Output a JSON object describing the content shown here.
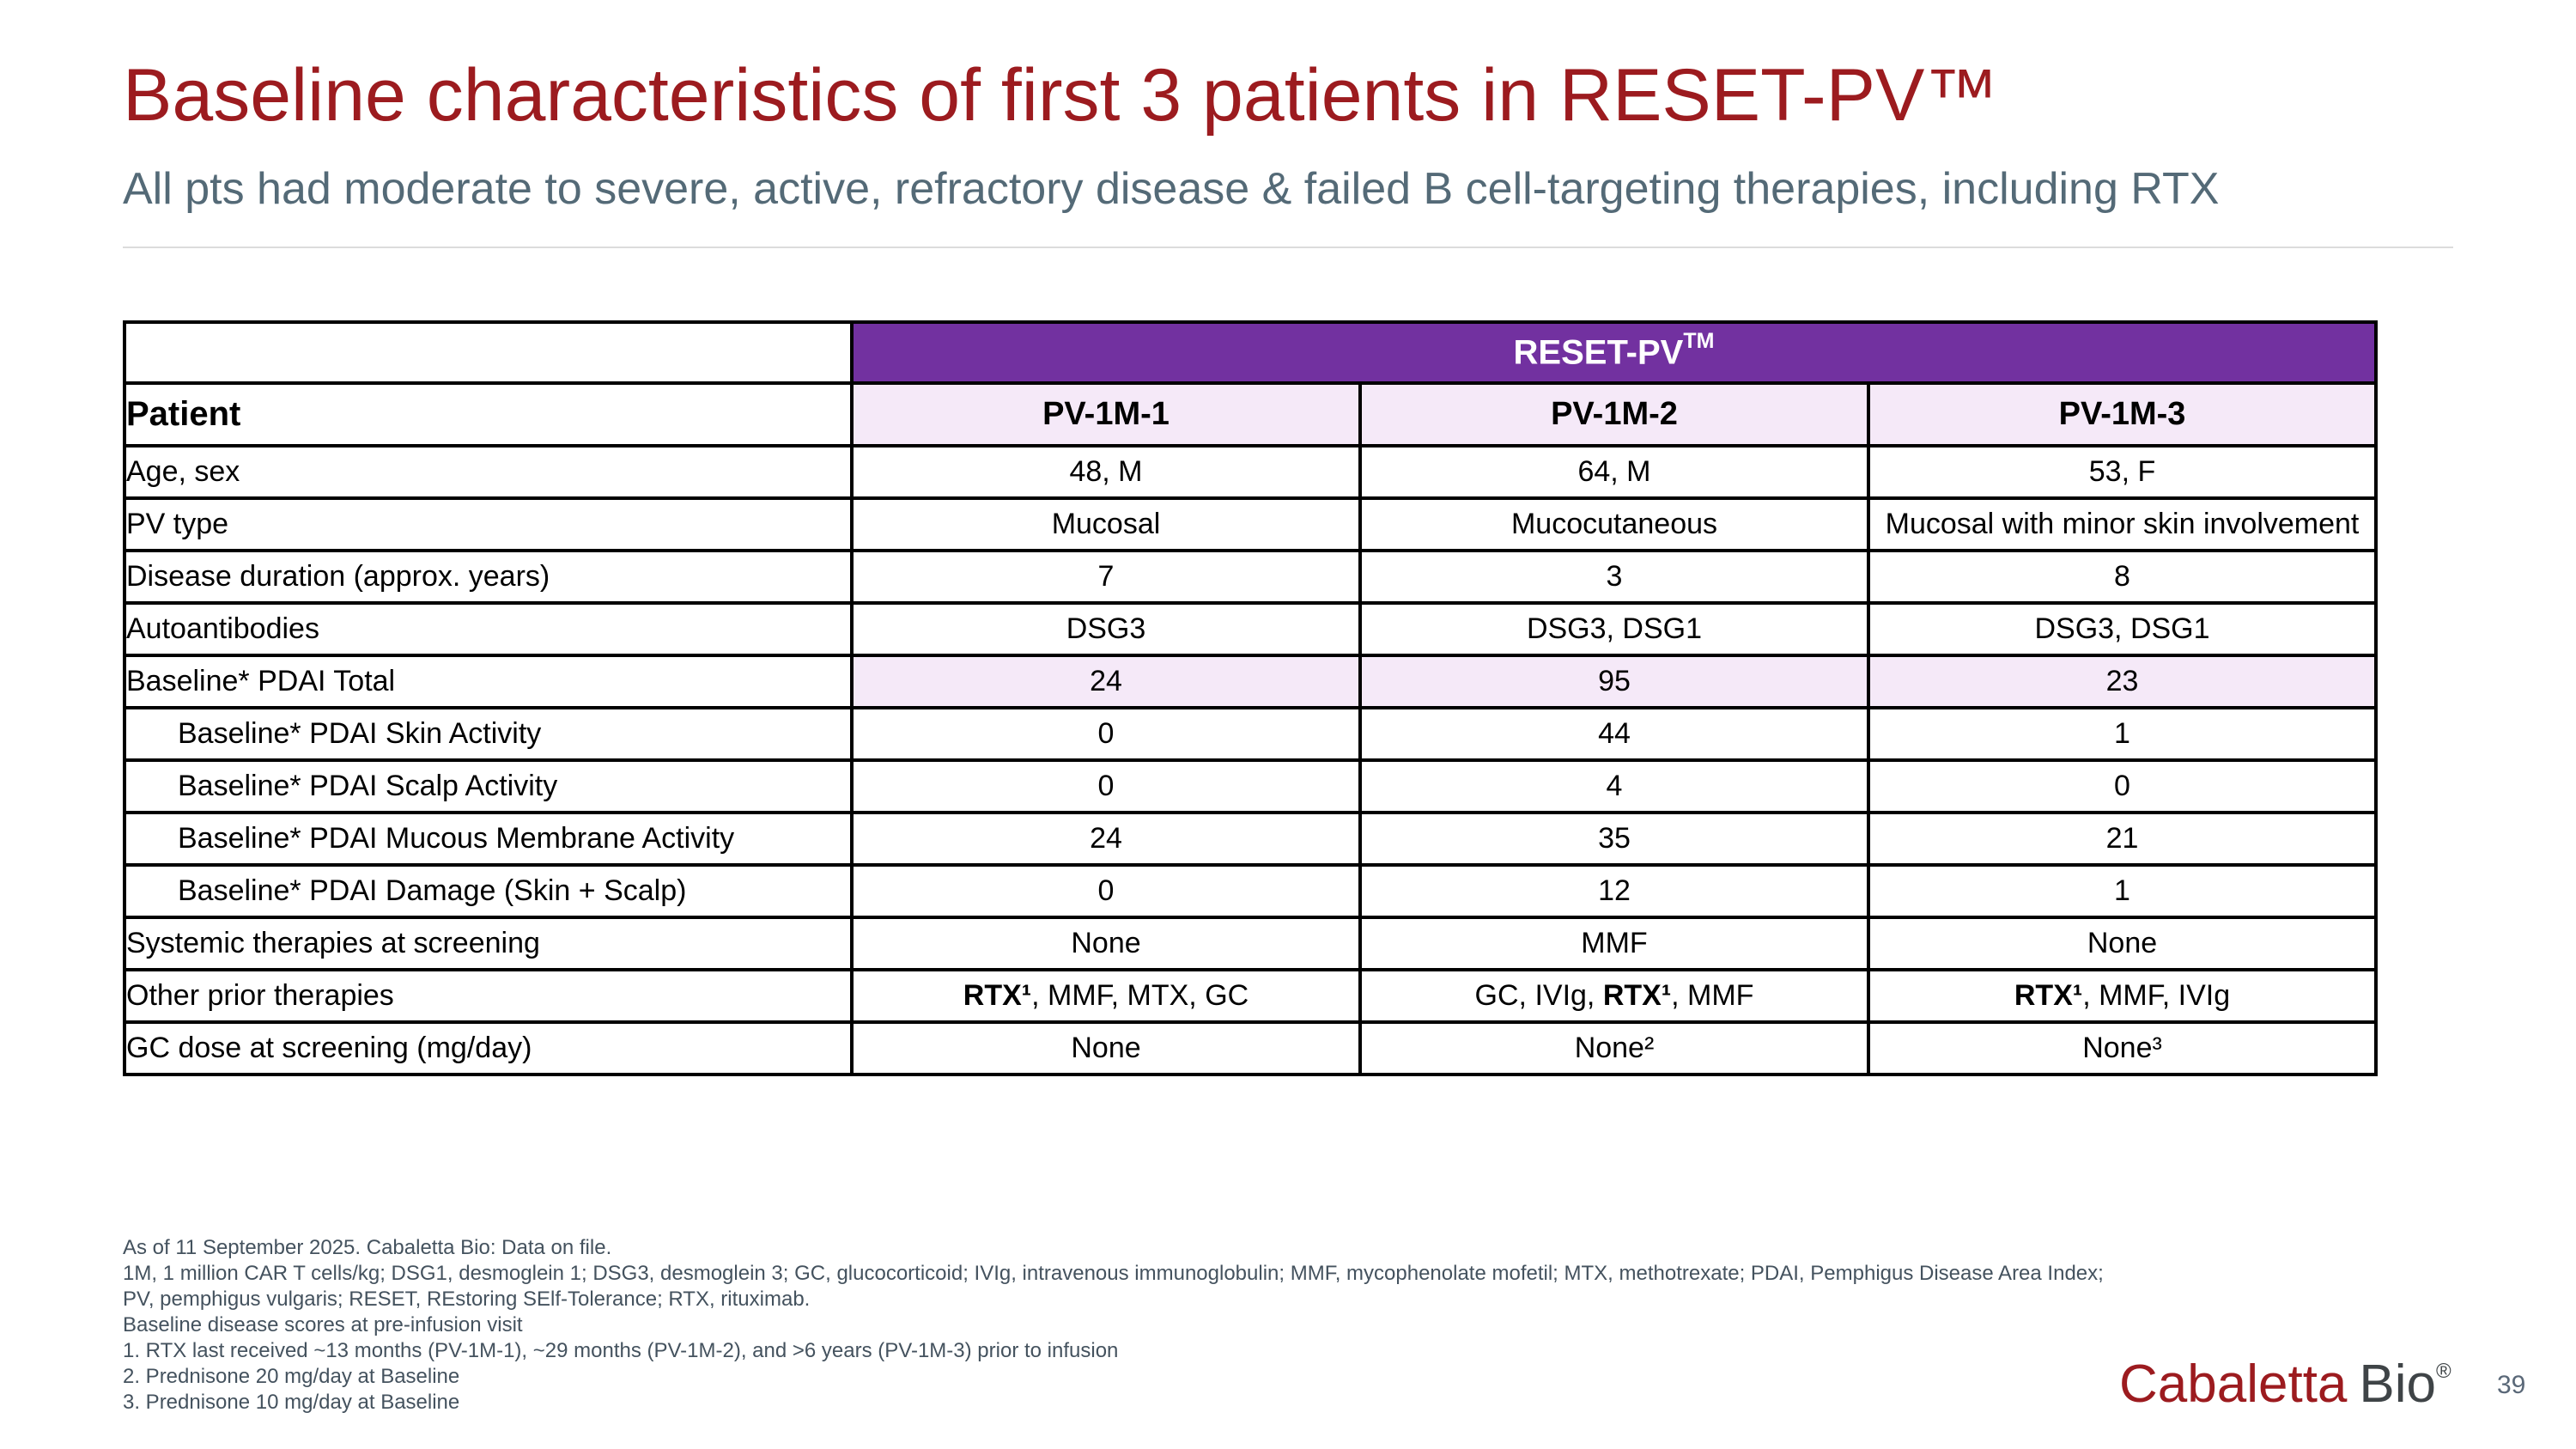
{
  "colors": {
    "accent_maroon": "#9C1B1F",
    "subtitle_slate": "#546A77",
    "table_header_purple": "#7231A0",
    "highlight_lavender": "#F5E9F8",
    "footnote_slate": "#44525E",
    "logo_grey": "#3F4447",
    "border_black": "#000000"
  },
  "header": {
    "title": "Baseline characteristics of first 3 patients in RESET-PV™",
    "subtitle": "All pts had moderate to severe, active, refractory disease & failed B cell-targeting therapies, including RTX"
  },
  "table": {
    "group_header": "RESET-PV",
    "group_header_sup": "TM",
    "corner_label": "Patient",
    "patient_columns": [
      "PV-1M-1",
      "PV-1M-2",
      "PV-1M-3"
    ],
    "rows": [
      {
        "label": "Age, sex",
        "indent": false,
        "bold": false,
        "highlight": false,
        "values": [
          "48, M",
          "64, M",
          "53, F"
        ]
      },
      {
        "label": "PV type",
        "indent": false,
        "bold": false,
        "highlight": false,
        "values": [
          "Mucosal",
          "Mucocutaneous",
          "Mucosal with minor skin involvement"
        ]
      },
      {
        "label": "Disease duration (approx. years)",
        "indent": false,
        "bold": false,
        "highlight": false,
        "values": [
          "7",
          "3",
          "8"
        ]
      },
      {
        "label": "Autoantibodies",
        "indent": false,
        "bold": false,
        "highlight": false,
        "values": [
          "DSG3",
          "DSG3, DSG1",
          "DSG3, DSG1"
        ]
      },
      {
        "label": "Baseline* PDAI Total",
        "indent": false,
        "bold": true,
        "highlight": true,
        "values": [
          "24",
          "95",
          "23"
        ]
      },
      {
        "label": "Baseline* PDAI Skin Activity",
        "indent": true,
        "bold": false,
        "highlight": false,
        "values": [
          "0",
          "44",
          "1"
        ]
      },
      {
        "label": "Baseline* PDAI Scalp Activity",
        "indent": true,
        "bold": false,
        "highlight": false,
        "values": [
          "0",
          "4",
          "0"
        ]
      },
      {
        "label": "Baseline* PDAI Mucous Membrane Activity",
        "indent": true,
        "bold": false,
        "highlight": false,
        "values": [
          "24",
          "35",
          "21"
        ]
      },
      {
        "label": "Baseline* PDAI Damage (Skin + Scalp)",
        "indent": true,
        "bold": false,
        "highlight": false,
        "values": [
          "0",
          "12",
          "1"
        ]
      },
      {
        "label": "Systemic therapies at screening",
        "indent": false,
        "bold": false,
        "highlight": false,
        "values": [
          "None",
          "MMF",
          "None"
        ]
      },
      {
        "label": "Other prior therapies",
        "indent": false,
        "bold": false,
        "highlight": false,
        "values": [
          [
            {
              "text": "RTX¹",
              "bold": true
            },
            {
              "text": ", MMF, MTX, GC",
              "bold": false
            }
          ],
          [
            {
              "text": "GC, IVIg, ",
              "bold": false
            },
            {
              "text": "RTX¹",
              "bold": true
            },
            {
              "text": ", MMF",
              "bold": false
            }
          ],
          [
            {
              "text": "RTX¹",
              "bold": true
            },
            {
              "text": ", MMF, IVIg",
              "bold": false
            }
          ]
        ]
      },
      {
        "label": "GC dose at screening (mg/day)",
        "indent": false,
        "bold": false,
        "highlight": false,
        "values": [
          "None",
          "None²",
          "None³"
        ]
      }
    ]
  },
  "footnotes": [
    "As of 11 September 2025. Cabaletta Bio: Data on file.",
    "1M, 1 million CAR T cells/kg; DSG1, desmoglein 1; DSG3, desmoglein 3; GC, glucocorticoid; IVIg, intravenous immunoglobulin; MMF, mycophenolate mofetil; MTX, methotrexate; PDAI, Pemphigus Disease Area Index; PV, pemphigus vulgaris; RESET, REstoring SElf-Tolerance; RTX, rituximab.",
    "Baseline disease scores at pre-infusion visit",
    "1. RTX last received ~13 months (PV-1M-1), ~29 months (PV-1M-2), and >6 years (PV-1M-3) prior to infusion",
    "2. Prednisone 20 mg/day at Baseline",
    "3. Prednisone 10 mg/day at Baseline"
  ],
  "footer": {
    "logo_primary": "Cabaletta",
    "logo_secondary": "Bio",
    "logo_mark": "®",
    "page_number": "39"
  }
}
